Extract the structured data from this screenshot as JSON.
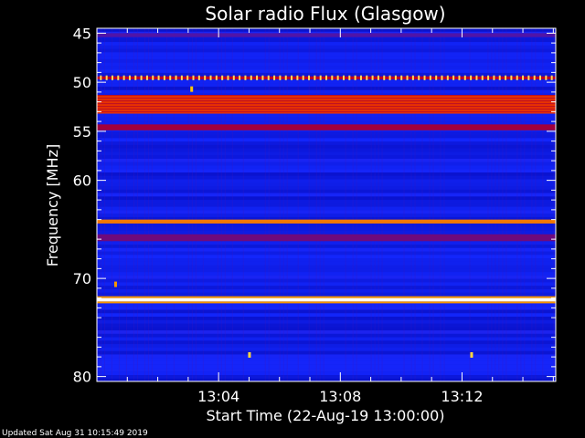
{
  "chart_data": {
    "type": "heatmap",
    "title": "Solar radio Flux (Glasgow)",
    "xlabel": "Start Time (22-Aug-19 13:00:00)",
    "ylabel": "Frequency [MHz]",
    "x_range_minutes": [
      0,
      15.08
    ],
    "y_range_mhz": [
      44.5,
      80.5
    ],
    "y_direction": "increasing-downward",
    "x_ticks": [
      {
        "value": 4,
        "label": "13:04"
      },
      {
        "value": 8,
        "label": "13:08"
      },
      {
        "value": 12,
        "label": "13:12"
      }
    ],
    "y_ticks": [
      {
        "value": 45,
        "label": "45"
      },
      {
        "value": 50,
        "label": "50"
      },
      {
        "value": 55,
        "label": "55"
      },
      {
        "value": 60,
        "label": "60"
      },
      {
        "value": 70,
        "label": "70"
      },
      {
        "value": 80,
        "label": "80"
      }
    ],
    "colormap": [
      "#0000a0",
      "#1428ff",
      "#8c0050",
      "#e00000",
      "#ffc800",
      "#ffffff"
    ],
    "background_level": 0.15,
    "bands": [
      {
        "freq_mhz": [
          45.0,
          45.4
        ],
        "intensity": 0.3
      },
      {
        "freq_mhz": [
          49.4,
          49.7
        ],
        "intensity": 0.75,
        "pattern": "dotted"
      },
      {
        "freq_mhz": [
          51.3,
          53.2
        ],
        "intensity": 0.65
      },
      {
        "freq_mhz": [
          54.3,
          54.9
        ],
        "intensity": 0.45
      },
      {
        "freq_mhz": [
          64.0,
          64.4
        ],
        "intensity": 0.72
      },
      {
        "freq_mhz": [
          65.5,
          66.2
        ],
        "intensity": 0.35
      },
      {
        "freq_mhz": [
          72.0,
          72.35
        ],
        "intensity": 1.0
      }
    ],
    "spots": [
      {
        "t": 3.1,
        "freq_mhz": 50.7,
        "intensity": 0.8
      },
      {
        "t": 0.6,
        "freq_mhz": 70.6,
        "intensity": 0.75
      },
      {
        "t": 5.0,
        "freq_mhz": 77.8,
        "intensity": 0.85
      },
      {
        "t": 12.3,
        "freq_mhz": 77.8,
        "intensity": 0.85
      }
    ],
    "grid": false,
    "legend": "none"
  },
  "footer": {
    "updated": "Updated Sat Aug 31 10:15:49 2019"
  }
}
